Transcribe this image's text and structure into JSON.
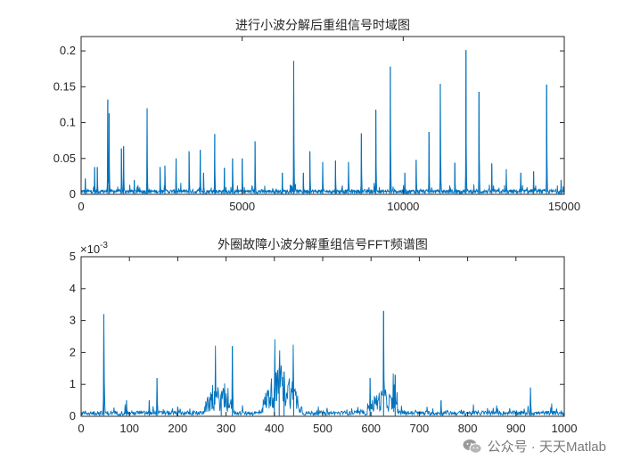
{
  "chart_data": [
    {
      "type": "line",
      "title": "进行小波分解后重组信号时域图",
      "xlabel": "",
      "ylabel": "",
      "xlim": [
        0,
        15000
      ],
      "ylim": [
        0,
        0.22
      ],
      "xticks": [
        0,
        5000,
        10000,
        15000
      ],
      "xtick_labels": [
        "0",
        "5000",
        "10000",
        "15000"
      ],
      "yticks": [
        0,
        0.05,
        0.1,
        0.15,
        0.2
      ],
      "ytick_labels": [
        "0",
        "0.05",
        "0.1",
        "0.15",
        "0.2"
      ],
      "grid": false,
      "line_color": "#0072BD",
      "baseline_level": 0.004,
      "peaks": [
        {
          "x": 130,
          "y": 0.022
        },
        {
          "x": 420,
          "y": 0.038
        },
        {
          "x": 500,
          "y": 0.038
        },
        {
          "x": 830,
          "y": 0.132
        },
        {
          "x": 870,
          "y": 0.113
        },
        {
          "x": 1250,
          "y": 0.064
        },
        {
          "x": 1320,
          "y": 0.067
        },
        {
          "x": 1650,
          "y": 0.02
        },
        {
          "x": 2050,
          "y": 0.12
        },
        {
          "x": 2450,
          "y": 0.038
        },
        {
          "x": 2600,
          "y": 0.04
        },
        {
          "x": 2950,
          "y": 0.05
        },
        {
          "x": 3350,
          "y": 0.06
        },
        {
          "x": 3700,
          "y": 0.062
        },
        {
          "x": 3800,
          "y": 0.03
        },
        {
          "x": 4150,
          "y": 0.084
        },
        {
          "x": 4450,
          "y": 0.037
        },
        {
          "x": 4700,
          "y": 0.05
        },
        {
          "x": 5000,
          "y": 0.05
        },
        {
          "x": 5400,
          "y": 0.074
        },
        {
          "x": 6250,
          "y": 0.03
        },
        {
          "x": 6600,
          "y": 0.186
        },
        {
          "x": 6900,
          "y": 0.03
        },
        {
          "x": 7100,
          "y": 0.06
        },
        {
          "x": 7500,
          "y": 0.045
        },
        {
          "x": 7900,
          "y": 0.047
        },
        {
          "x": 8300,
          "y": 0.045
        },
        {
          "x": 8700,
          "y": 0.085
        },
        {
          "x": 9150,
          "y": 0.118
        },
        {
          "x": 9600,
          "y": 0.178
        },
        {
          "x": 10050,
          "y": 0.03
        },
        {
          "x": 10400,
          "y": 0.048
        },
        {
          "x": 10800,
          "y": 0.087
        },
        {
          "x": 11150,
          "y": 0.154
        },
        {
          "x": 11600,
          "y": 0.044
        },
        {
          "x": 11950,
          "y": 0.201
        },
        {
          "x": 12350,
          "y": 0.143
        },
        {
          "x": 12750,
          "y": 0.043
        },
        {
          "x": 13200,
          "y": 0.035
        },
        {
          "x": 13650,
          "y": 0.03
        },
        {
          "x": 14050,
          "y": 0.032
        },
        {
          "x": 14450,
          "y": 0.153
        },
        {
          "x": 14900,
          "y": 0.02
        }
      ]
    },
    {
      "type": "line",
      "title": "外圈故障小波分解重组信号FFT频谱图",
      "xlabel": "",
      "ylabel": "",
      "y_exponent_label": "×10",
      "y_exponent_power": "-3",
      "xlim": [
        0,
        1000
      ],
      "ylim": [
        0,
        0.005
      ],
      "xticks": [
        0,
        100,
        200,
        300,
        400,
        500,
        600,
        700,
        800,
        900,
        1000
      ],
      "xtick_labels": [
        "0",
        "100",
        "200",
        "300",
        "400",
        "500",
        "600",
        "700",
        "800",
        "900",
        "1000"
      ],
      "yticks": [
        0,
        0.001,
        0.002,
        0.003,
        0.004,
        0.005
      ],
      "ytick_labels": [
        "0",
        "1",
        "2",
        "3",
        "4",
        "5"
      ],
      "grid": false,
      "line_color": "#0072BD",
      "baseline_level": 0.0001,
      "hump_regions": [
        {
          "from": 250,
          "to": 320,
          "level": 0.00045
        },
        {
          "from": 370,
          "to": 460,
          "level": 0.0008
        },
        {
          "from": 590,
          "to": 660,
          "level": 0.0004
        }
      ],
      "peaks": [
        {
          "x": 47,
          "y": 0.0032
        },
        {
          "x": 94,
          "y": 0.0005
        },
        {
          "x": 141,
          "y": 0.0005
        },
        {
          "x": 157,
          "y": 0.0012
        },
        {
          "x": 200,
          "y": 0.0003
        },
        {
          "x": 290,
          "y": 0.0007
        },
        {
          "x": 313,
          "y": 0.0022
        },
        {
          "x": 400,
          "y": 0.0009
        },
        {
          "x": 410,
          "y": 0.0015
        },
        {
          "x": 420,
          "y": 0.0014
        },
        {
          "x": 440,
          "y": 0.0009
        },
        {
          "x": 598,
          "y": 0.0012
        },
        {
          "x": 626,
          "y": 0.0033
        },
        {
          "x": 650,
          "y": 0.0013
        },
        {
          "x": 745,
          "y": 0.0005
        },
        {
          "x": 930,
          "y": 0.0009
        }
      ]
    }
  ],
  "watermark": {
    "icon": "wechat-icon",
    "text": "公众号 · 天天Matlab"
  }
}
